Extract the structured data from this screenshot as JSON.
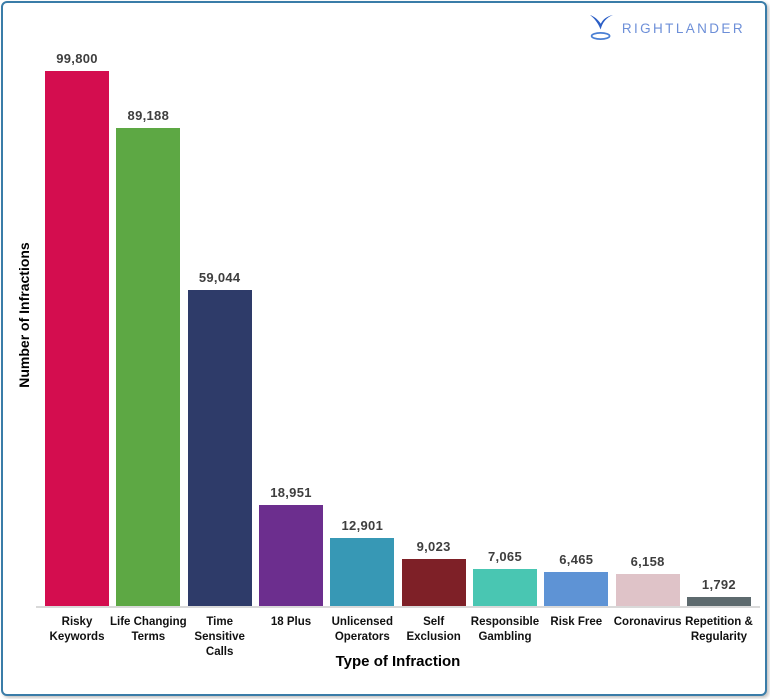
{
  "logo": {
    "brand": "RIGHTLANDER",
    "icon": "rightlander-bird-icon",
    "icon_color": "#2b5ec6",
    "text_color": "#6d8fd8"
  },
  "frame": {
    "border_color": "#3a7ca8"
  },
  "chart_data": {
    "type": "bar",
    "title": "",
    "xlabel": "Type of Infraction",
    "ylabel": "Number of Infractions",
    "ylim": [
      0,
      100000
    ],
    "grid": false,
    "legend": "none",
    "categories": [
      "Risky\nKeywords",
      "Life Changing\nTerms",
      "Time\nSensitive\nCalls",
      "18 Plus",
      "Unlicensed\nOperators",
      "Self\nExclusion",
      "Responsible\nGambling",
      "Risk Free",
      "Coronavirus",
      "Repetition &\nRegularity"
    ],
    "values": [
      99800,
      89188,
      59044,
      18951,
      12901,
      9023,
      7065,
      6465,
      6158,
      1792
    ],
    "value_labels": [
      "99,800",
      "89,188",
      "59,044",
      "18,951",
      "12,901",
      "9,023",
      "7,065",
      "6,465",
      "6,158",
      "1,792"
    ],
    "bar_colors": [
      "#d40d4f",
      "#5da844",
      "#2e3b69",
      "#6c2e8e",
      "#3798b5",
      "#7e2027",
      "#49c6b2",
      "#5e93d5",
      "#dfc3c8",
      "#5d6a6e"
    ],
    "value_label_color": "#3e3e3e",
    "axis_line_color": "#d9d9d9"
  }
}
